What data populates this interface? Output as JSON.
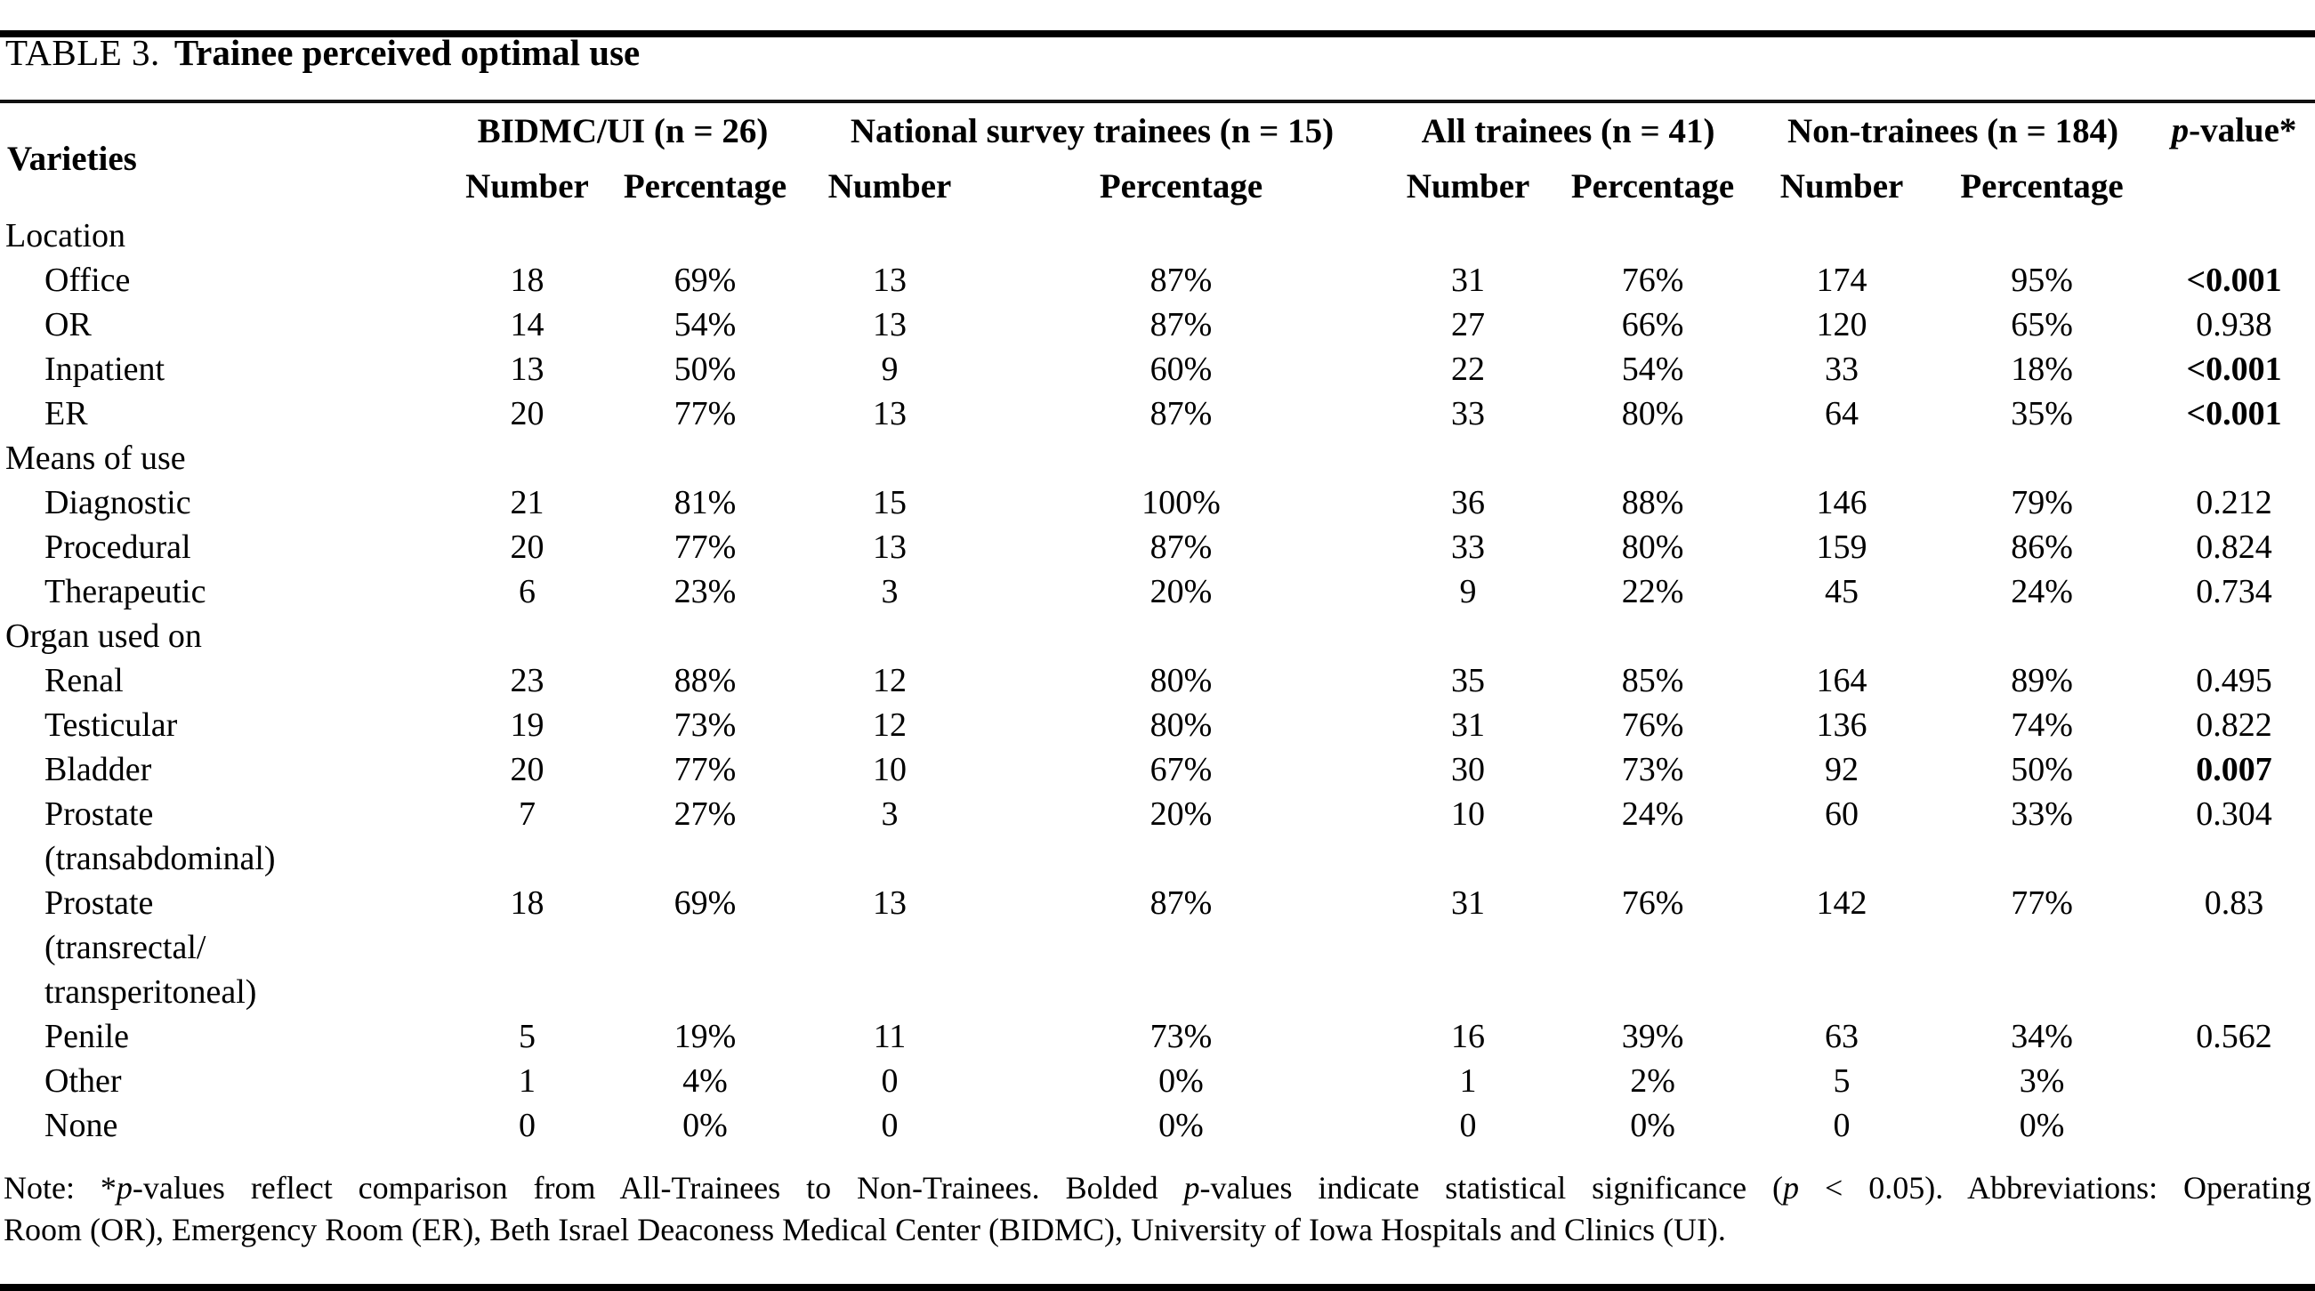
{
  "title": {
    "prefix": "TABLE 3.",
    "text": "Trainee perceived optimal use"
  },
  "header": {
    "varieties": "Varieties",
    "groups": [
      {
        "label": "BIDMC/UI (n = 26)",
        "sub": [
          "Number",
          "Percentage"
        ]
      },
      {
        "label": "National survey trainees (n = 15)",
        "sub": [
          "Number",
          "Percentage"
        ]
      },
      {
        "label": "All trainees (n = 41)",
        "sub": [
          "Number",
          "Percentage"
        ]
      },
      {
        "label": "Non-trainees (n = 184)",
        "sub": [
          "Number",
          "Percentage"
        ]
      }
    ],
    "pvalue_italic": "p",
    "pvalue_rest": "-value*"
  },
  "sections": [
    {
      "label": "Location",
      "rows": [
        {
          "label_lines": [
            "Office"
          ],
          "values": [
            "18",
            "69%",
            "13",
            "87%",
            "31",
            "76%",
            "174",
            "95%"
          ],
          "p": "<0.001",
          "p_bold": true
        },
        {
          "label_lines": [
            "OR"
          ],
          "values": [
            "14",
            "54%",
            "13",
            "87%",
            "27",
            "66%",
            "120",
            "65%"
          ],
          "p": "0.938",
          "p_bold": false
        },
        {
          "label_lines": [
            "Inpatient"
          ],
          "values": [
            "13",
            "50%",
            "9",
            "60%",
            "22",
            "54%",
            "33",
            "18%"
          ],
          "p": "<0.001",
          "p_bold": true
        },
        {
          "label_lines": [
            "ER"
          ],
          "values": [
            "20",
            "77%",
            "13",
            "87%",
            "33",
            "80%",
            "64",
            "35%"
          ],
          "p": "<0.001",
          "p_bold": true
        }
      ]
    },
    {
      "label": "Means of use",
      "rows": [
        {
          "label_lines": [
            "Diagnostic"
          ],
          "values": [
            "21",
            "81%",
            "15",
            "100%",
            "36",
            "88%",
            "146",
            "79%"
          ],
          "p": "0.212",
          "p_bold": false
        },
        {
          "label_lines": [
            "Procedural"
          ],
          "values": [
            "20",
            "77%",
            "13",
            "87%",
            "33",
            "80%",
            "159",
            "86%"
          ],
          "p": "0.824",
          "p_bold": false
        },
        {
          "label_lines": [
            "Therapeutic"
          ],
          "values": [
            "6",
            "23%",
            "3",
            "20%",
            "9",
            "22%",
            "45",
            "24%"
          ],
          "p": "0.734",
          "p_bold": false
        }
      ]
    },
    {
      "label": "Organ used on",
      "rows": [
        {
          "label_lines": [
            "Renal"
          ],
          "values": [
            "23",
            "88%",
            "12",
            "80%",
            "35",
            "85%",
            "164",
            "89%"
          ],
          "p": "0.495",
          "p_bold": false
        },
        {
          "label_lines": [
            "Testicular"
          ],
          "values": [
            "19",
            "73%",
            "12",
            "80%",
            "31",
            "76%",
            "136",
            "74%"
          ],
          "p": "0.822",
          "p_bold": false
        },
        {
          "label_lines": [
            "Bladder"
          ],
          "values": [
            "20",
            "77%",
            "10",
            "67%",
            "30",
            "73%",
            "92",
            "50%"
          ],
          "p": "0.007",
          "p_bold": true
        },
        {
          "label_lines": [
            "Prostate",
            "(transabdominal)"
          ],
          "values": [
            "7",
            "27%",
            "3",
            "20%",
            "10",
            "24%",
            "60",
            "33%"
          ],
          "p": "0.304",
          "p_bold": false
        },
        {
          "label_lines": [
            "Prostate",
            "(transrectal/",
            "transperitoneal)"
          ],
          "values": [
            "18",
            "69%",
            "13",
            "87%",
            "31",
            "76%",
            "142",
            "77%"
          ],
          "p": "0.83",
          "p_bold": false
        },
        {
          "label_lines": [
            "Penile"
          ],
          "values": [
            "5",
            "19%",
            "11",
            "73%",
            "16",
            "39%",
            "63",
            "34%"
          ],
          "p": "0.562",
          "p_bold": false
        },
        {
          "label_lines": [
            "Other"
          ],
          "values": [
            "1",
            "4%",
            "0",
            "0%",
            "1",
            "2%",
            "5",
            "3%"
          ],
          "p": "",
          "p_bold": false
        },
        {
          "label_lines": [
            "None"
          ],
          "values": [
            "0",
            "0%",
            "0",
            "0%",
            "0",
            "0%",
            "0",
            "0%"
          ],
          "p": "",
          "p_bold": false
        }
      ]
    }
  ],
  "note": {
    "lines": [
      [
        {
          "t": "Note: *"
        },
        {
          "t": "p",
          "i": true
        },
        {
          "t": "-values reflect comparison from All-Trainees to Non-Trainees. Bolded "
        },
        {
          "t": "p",
          "i": true
        },
        {
          "t": "-values indicate statistical significance ("
        },
        {
          "t": "p",
          "i": true
        },
        {
          "t": " < 0.05). Abbreviations: Operating"
        }
      ],
      [
        {
          "t": "Room (OR), Emergency Room (ER), Beth Israel Deaconess Medical Center (BIDMC), University of Iowa Hospitals and Clinics (UI)."
        }
      ]
    ]
  }
}
